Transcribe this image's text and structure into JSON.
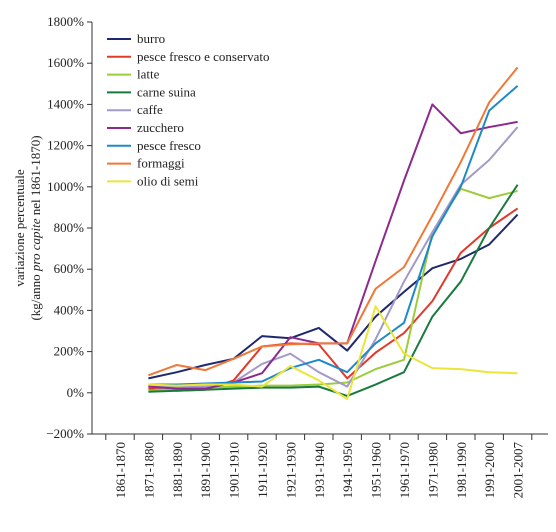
{
  "chart_data": {
    "type": "line",
    "y_label": {
      "line1": "variazione percentuale",
      "line2": [
        "(kg/anno ",
        "pro capite",
        " nel 1861-1870)"
      ]
    },
    "categories": [
      "1861-1870",
      "1871-1880",
      "1881-1890",
      "1891-1900",
      "1901-1910",
      "1911-1920",
      "1921-1930",
      "1931-1940",
      "1941-1950",
      "1951-1960",
      "1961-1970",
      "1971-1980",
      "1981-1990",
      "1991-2000",
      "2001-2007"
    ],
    "ylim": [
      -200,
      1800
    ],
    "yticks": [
      {
        "value": -200,
        "label": "−200%"
      },
      {
        "value": 0,
        "label": "0%"
      },
      {
        "value": 200,
        "label": "200%"
      },
      {
        "value": 400,
        "label": "400%"
      },
      {
        "value": 600,
        "label": "600%"
      },
      {
        "value": 800,
        "label": "800%"
      },
      {
        "value": 1000,
        "label": "1000%"
      },
      {
        "value": 1200,
        "label": "1200%"
      },
      {
        "value": 1400,
        "label": "1400%"
      },
      {
        "value": 1600,
        "label": "1600%"
      },
      {
        "value": 1800,
        "label": "1800%"
      }
    ],
    "legend": "top-left",
    "series": [
      {
        "name": "burro",
        "color": "#1f2a6e",
        "values": [
          null,
          70,
          100,
          135,
          165,
          275,
          265,
          315,
          205,
          370,
          490,
          605,
          650,
          720,
          865
        ]
      },
      {
        "name": "pesce fresco e conservato",
        "color": "#e03a2a",
        "values": [
          null,
          20,
          10,
          15,
          60,
          225,
          240,
          235,
          70,
          195,
          290,
          445,
          680,
          800,
          895
        ]
      },
      {
        "name": "latte",
        "color": "#9dcc3a",
        "values": [
          null,
          10,
          20,
          25,
          30,
          35,
          35,
          40,
          50,
          115,
          160,
          780,
          990,
          945,
          980
        ]
      },
      {
        "name": "carne suina",
        "color": "#1a7a3e",
        "values": [
          null,
          5,
          10,
          15,
          20,
          25,
          25,
          30,
          -15,
          40,
          100,
          370,
          540,
          800,
          1010
        ]
      },
      {
        "name": "caffe",
        "color": "#a49ac9",
        "values": [
          null,
          30,
          30,
          30,
          50,
          140,
          190,
          100,
          30,
          260,
          540,
          780,
          1010,
          1130,
          1290
        ]
      },
      {
        "name": "zucchero",
        "color": "#8e2a8e",
        "values": [
          null,
          30,
          20,
          20,
          50,
          95,
          270,
          240,
          240,
          640,
          1030,
          1400,
          1260,
          1290,
          1315
        ]
      },
      {
        "name": "pesce fresco",
        "color": "#1f88c8",
        "values": [
          null,
          40,
          40,
          45,
          50,
          55,
          120,
          160,
          100,
          240,
          340,
          760,
          1000,
          1370,
          1490
        ]
      },
      {
        "name": "formaggi",
        "color": "#f07838",
        "values": [
          null,
          85,
          135,
          110,
          165,
          225,
          235,
          240,
          240,
          505,
          610,
          860,
          1120,
          1410,
          1580
        ]
      },
      {
        "name": "olio di semi",
        "color": "#ebe53a",
        "values": [
          null,
          40,
          35,
          40,
          40,
          30,
          130,
          60,
          -30,
          420,
          190,
          120,
          115,
          100,
          95
        ]
      }
    ]
  }
}
